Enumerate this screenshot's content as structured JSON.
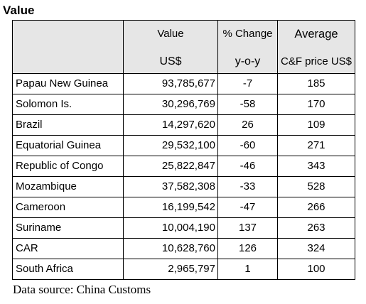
{
  "title": "Value",
  "header": {
    "col_value_top": "Value",
    "col_value_bottom": "US$",
    "col_change_top": "% Change",
    "col_change_bottom": "y-o-y",
    "col_price_top": "Average",
    "col_price_bottom": "C&F price US$"
  },
  "rows": [
    {
      "country": "Papau New Guinea",
      "value": "93,785,677",
      "change": "-7",
      "price": "185"
    },
    {
      "country": "Solomon Is.",
      "value": "30,296,769",
      "change": "-58",
      "price": "170"
    },
    {
      "country": "Brazil",
      "value": "14,297,620",
      "change": "26",
      "price": "109"
    },
    {
      "country": "Equatorial Guinea",
      "value": "29,532,100",
      "change": "-60",
      "price": "271"
    },
    {
      "country": "Republic of Congo",
      "value": "25,822,847",
      "change": "-46",
      "price": "343"
    },
    {
      "country": "Mozambique",
      "value": "37,582,308",
      "change": "-33",
      "price": "528"
    },
    {
      "country": "Cameroon",
      "value": "16,199,542",
      "change": "-47",
      "price": "266"
    },
    {
      "country": "Suriname",
      "value": "10,004,190",
      "change": "137",
      "price": "263"
    },
    {
      "country": "CAR",
      "value": "10,628,760",
      "change": "126",
      "price": "324"
    },
    {
      "country": "South Africa",
      "value": "2,965,797",
      "change": "1",
      "price": "100"
    }
  ],
  "source": "Data source: China Customs",
  "colors": {
    "header_background": "#e6e6e6",
    "border": "#000000"
  }
}
